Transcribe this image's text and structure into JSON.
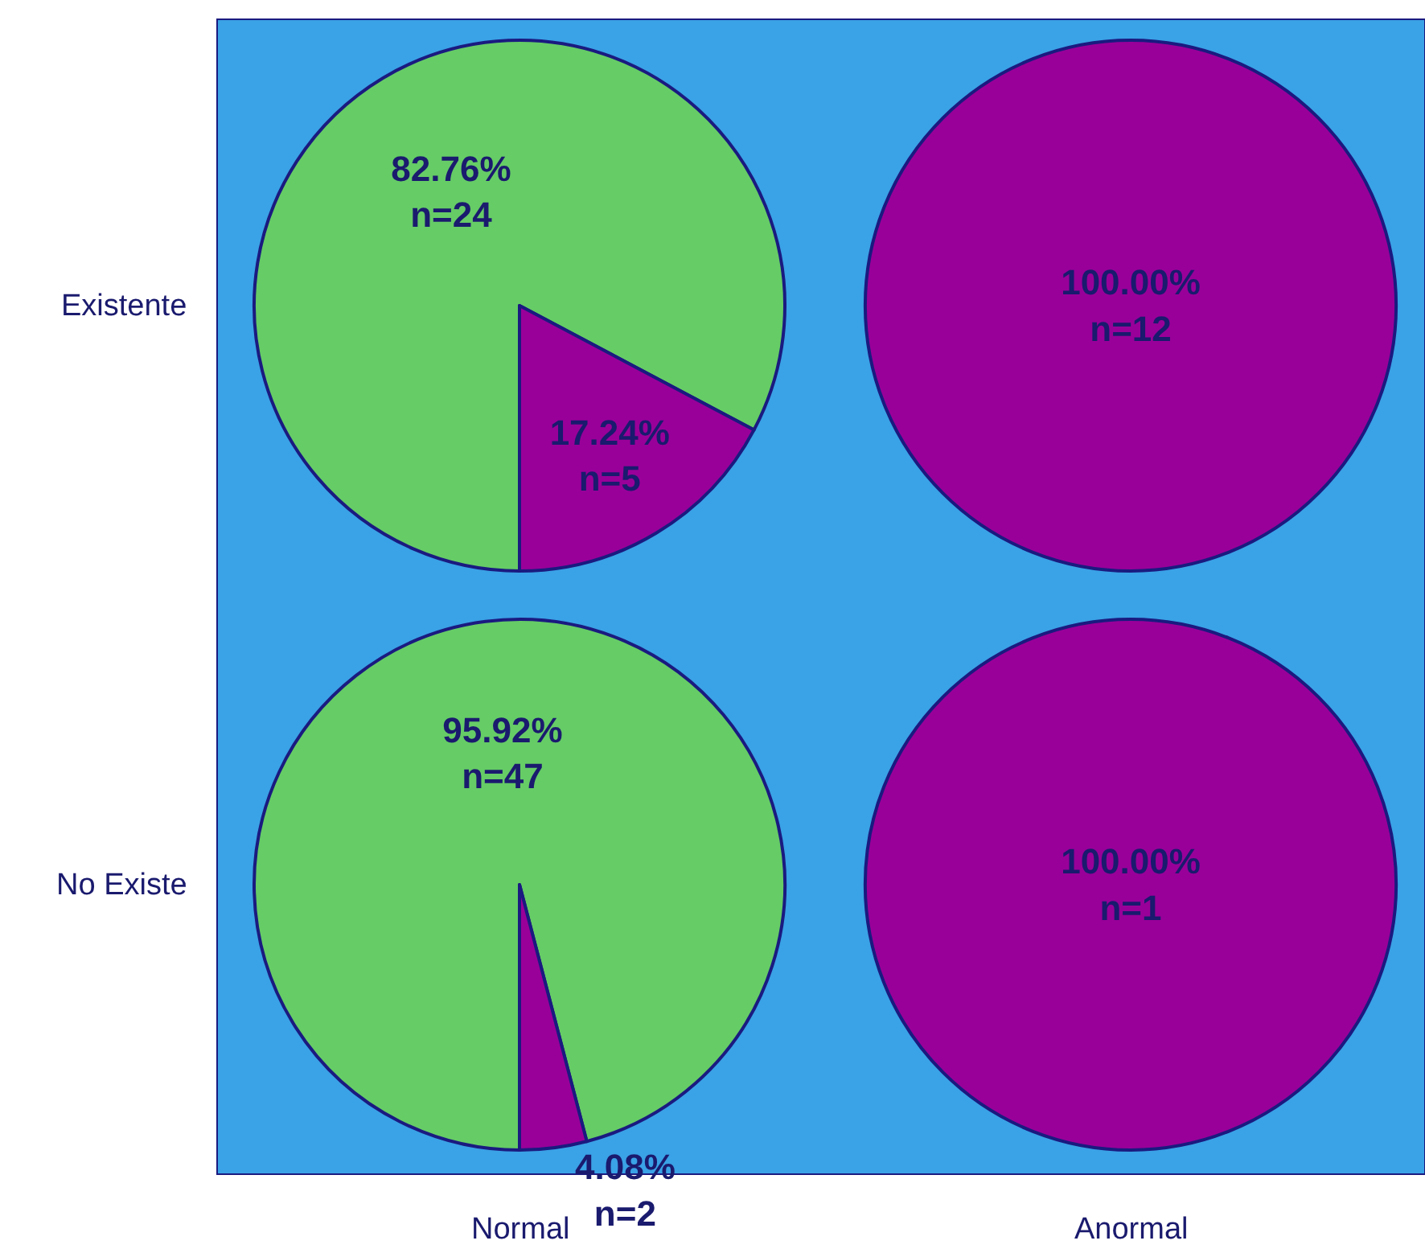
{
  "chart_data": [
    {
      "type": "pie",
      "categories": [
        null,
        null
      ],
      "values": [
        82.76,
        17.24
      ],
      "colors": [
        "#66cc66",
        "#990099"
      ],
      "value_labels": [
        "82.76%\nn=24",
        "17.24%\nn=5"
      ],
      "ylabel": "Existente"
    },
    {
      "type": "pie",
      "categories": [
        null
      ],
      "values": [
        100
      ],
      "colors": [
        "#990099"
      ],
      "value_labels": [
        "100.00%\nn=12"
      ]
    },
    {
      "type": "pie",
      "categories": [
        null,
        null
      ],
      "values": [
        95.92,
        4.08
      ],
      "colors": [
        "#66cc66",
        "#990099"
      ],
      "value_labels": [
        "95.92%\nn=47",
        "4.08%\nn=2"
      ],
      "ylabel": "No Existe",
      "xlabel": "Normal"
    },
    {
      "type": "pie",
      "categories": [
        null
      ],
      "values": [
        100
      ],
      "colors": [
        "#990099"
      ],
      "value_labels": [
        "100.00%\nn=1"
      ],
      "xlabel": "Anormal"
    }
  ]
}
